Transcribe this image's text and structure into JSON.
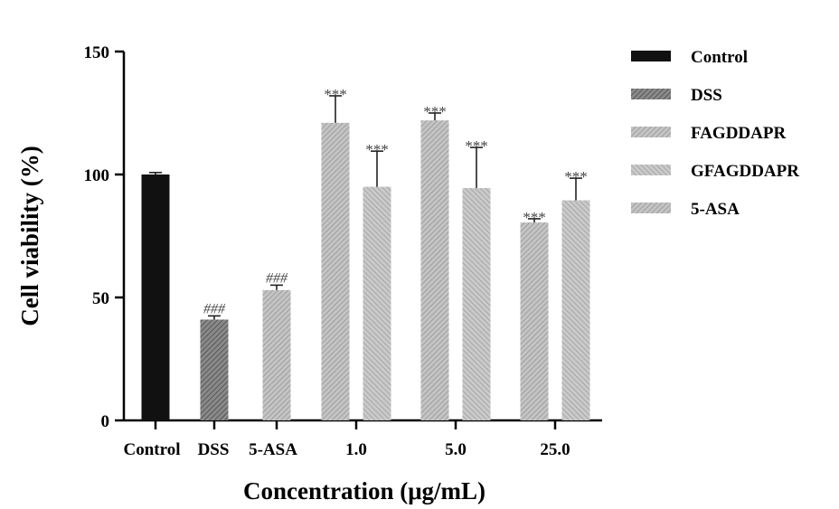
{
  "chart_data": {
    "type": "bar",
    "ylabel": "Cell viability (%)",
    "xlabel": "Concentration (μg/mL)",
    "ylim": [
      0,
      150
    ],
    "yticks": [
      0,
      50,
      100,
      150
    ],
    "categories": [
      "Control",
      "DSS",
      "5-ASA",
      "1.0",
      "5.0",
      "25.0"
    ],
    "legend_position": "right",
    "series": [
      {
        "name": "Control",
        "color": "#111111"
      },
      {
        "name": "DSS",
        "color": "#6a6a6a"
      },
      {
        "name": "FAGDDAPR",
        "color": "#a9a9a9"
      },
      {
        "name": "GFAGDDAPR",
        "color": "#b8b8b8"
      },
      {
        "name": "5-ASA",
        "color": "#b0b0b0"
      }
    ],
    "bars": [
      {
        "category": "Control",
        "series": "Control",
        "value": 100,
        "error": 0.8,
        "annotation": ""
      },
      {
        "category": "DSS",
        "series": "DSS",
        "value": 41,
        "error": 1.5,
        "annotation": "###"
      },
      {
        "category": "5-ASA",
        "series": "5-ASA",
        "value": 53,
        "error": 2,
        "annotation": "###"
      },
      {
        "category": "1.0",
        "series": "FAGDDAPR",
        "value": 121,
        "error": 11,
        "annotation": "***"
      },
      {
        "category": "1.0",
        "series": "GFAGDDAPR",
        "value": 95,
        "error": 14.5,
        "annotation": "***"
      },
      {
        "category": "5.0",
        "series": "FAGDDAPR",
        "value": 122,
        "error": 3,
        "annotation": "***"
      },
      {
        "category": "5.0",
        "series": "GFAGDDAPR",
        "value": 94.5,
        "error": 16.5,
        "annotation": "***"
      },
      {
        "category": "25.0",
        "series": "FAGDDAPR",
        "value": 80.5,
        "error": 1.5,
        "annotation": "***"
      },
      {
        "category": "25.0",
        "series": "GFAGDDAPR",
        "value": 89.5,
        "error": 9,
        "annotation": "***"
      }
    ]
  }
}
